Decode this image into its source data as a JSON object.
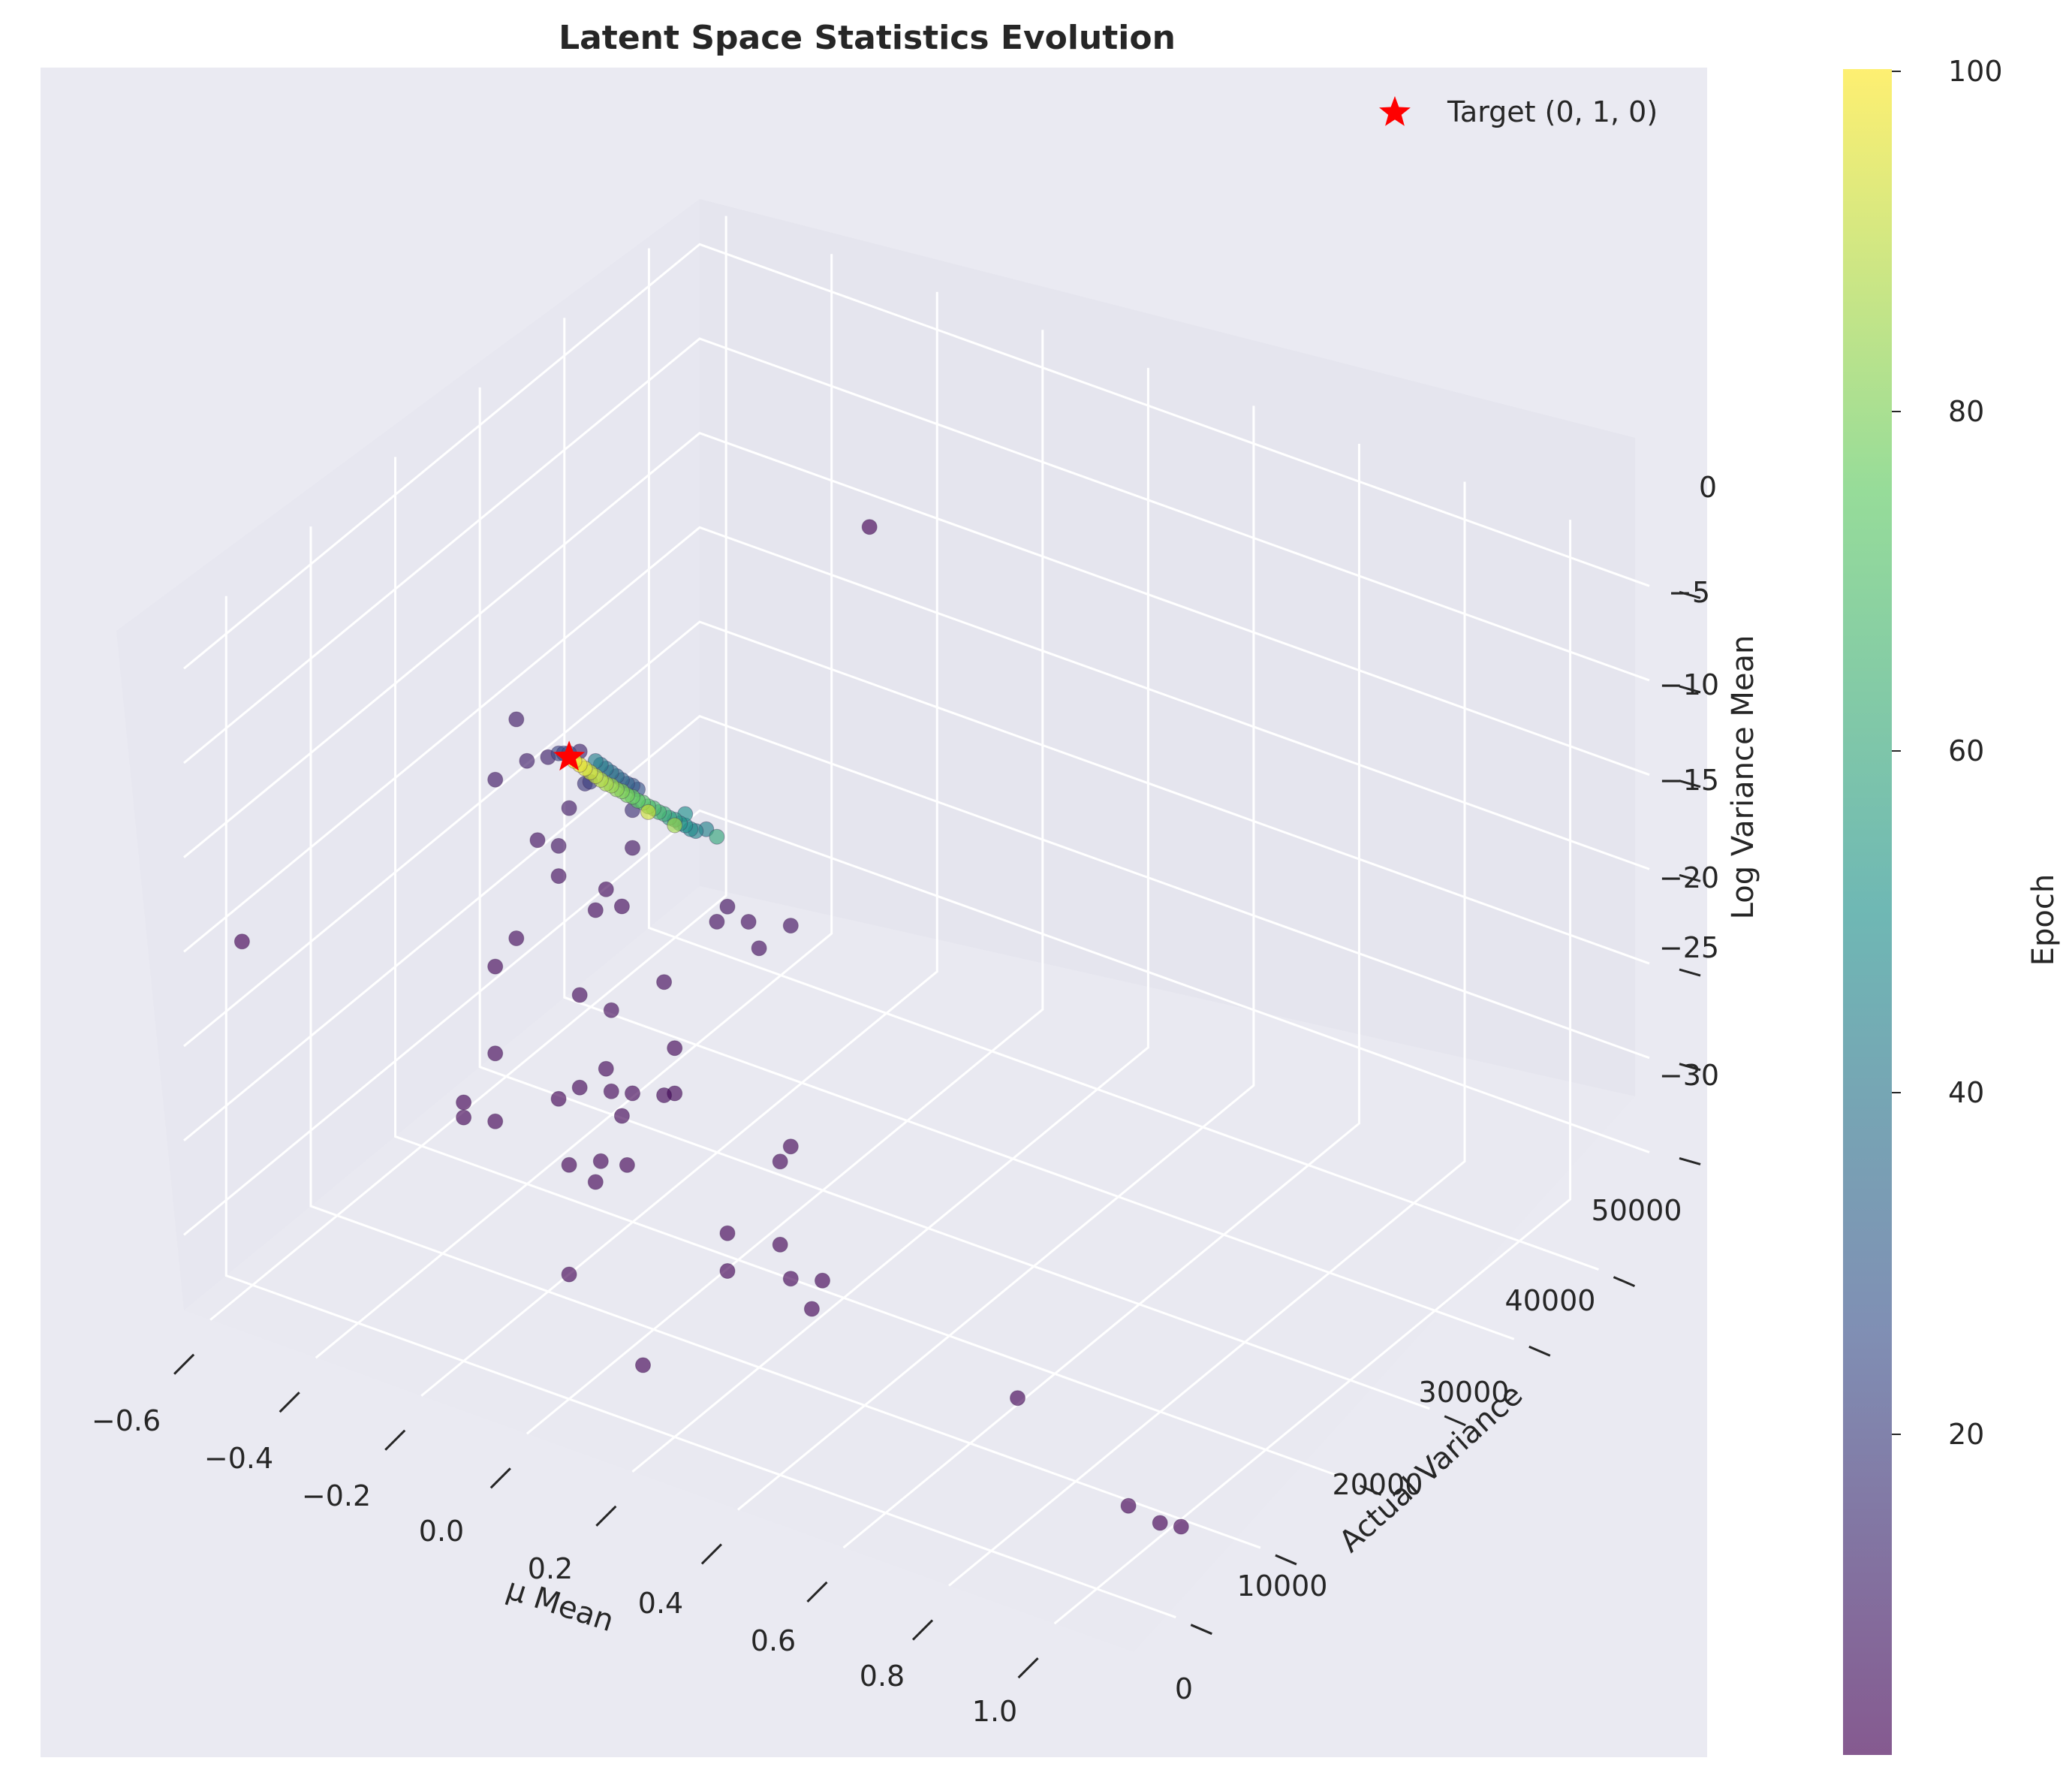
{
  "chart_data": {
    "type": "scatter",
    "projection": "3d",
    "title": "Latent Space Statistics Evolution",
    "xlabel": "μ Mean",
    "ylabel": "Actual Variance",
    "zlabel": "Log Variance Mean",
    "xticks": [
      "−0.6",
      "−0.4",
      "−0.2",
      "0.0",
      "0.2",
      "0.4",
      "0.6",
      "0.8",
      "1.0"
    ],
    "yticks": [
      "0",
      "10000",
      "20000",
      "30000",
      "40000",
      "50000"
    ],
    "zticks": [
      "−30",
      "−25",
      "−20",
      "−15",
      "−10",
      "−5",
      "0"
    ],
    "xlim": [
      -0.65,
      1.15
    ],
    "ylim": [
      -5000,
      56000
    ],
    "zlim": [
      -34,
      2
    ],
    "grid": true,
    "legend": {
      "position": "top-right",
      "entries": [
        {
          "label": "Target (0, 1, 0)",
          "marker": "star",
          "color": "#ff0000"
        }
      ]
    },
    "colorbar": {
      "label": "Epoch",
      "colormap": "viridis",
      "range": [
        1,
        100
      ],
      "ticks": [
        "20",
        "40",
        "60",
        "80",
        "100"
      ]
    },
    "target": {
      "x": 0,
      "y": 1,
      "z": 0
    },
    "points": [
      [
        0.01,
        0,
        -0.1,
        98
      ],
      [
        0.02,
        0,
        -0.2,
        96
      ],
      [
        0.03,
        0,
        -0.3,
        94
      ],
      [
        0.04,
        0,
        -0.4,
        92
      ],
      [
        0.05,
        0,
        -0.5,
        90
      ],
      [
        0.06,
        0,
        -0.6,
        88
      ],
      [
        0.07,
        0,
        -0.7,
        86
      ],
      [
        0.08,
        0,
        -0.7,
        84
      ],
      [
        0.09,
        0,
        -0.8,
        82
      ],
      [
        0.1,
        0,
        -0.8,
        80
      ],
      [
        0.11,
        0,
        -0.9,
        78
      ],
      [
        0.12,
        0,
        -0.9,
        76
      ],
      [
        0.13,
        0,
        -1.0,
        74
      ],
      [
        0.14,
        0,
        -1.0,
        72
      ],
      [
        0.15,
        0,
        -1.1,
        70
      ],
      [
        0.16,
        0,
        -1.1,
        68
      ],
      [
        0.17,
        0,
        -1.2,
        66
      ],
      [
        0.18,
        0,
        -1.2,
        62
      ],
      [
        0.19,
        0,
        -1.3,
        58
      ],
      [
        0.2,
        0,
        -1.3,
        55
      ],
      [
        0.21,
        0,
        -1.4,
        52
      ],
      [
        0.22,
        0,
        -1.4,
        50
      ],
      [
        0.23,
        0,
        -1.5,
        48
      ],
      [
        0.24,
        0,
        -1.5,
        46
      ],
      [
        0.05,
        0,
        0.3,
        44
      ],
      [
        0.06,
        0,
        0.2,
        42
      ],
      [
        0.07,
        0,
        0.1,
        40
      ],
      [
        0.08,
        0,
        0.0,
        38
      ],
      [
        0.09,
        0,
        -0.1,
        36
      ],
      [
        0.1,
        0,
        -0.2,
        34
      ],
      [
        0.11,
        0,
        -0.3,
        32
      ],
      [
        0.12,
        0,
        -0.3,
        30
      ],
      [
        0.13,
        0,
        -0.4,
        28
      ],
      [
        0.0,
        0,
        0.2,
        26
      ],
      [
        -0.01,
        0,
        0.1,
        24
      ],
      [
        -0.02,
        0,
        0.0,
        22
      ],
      [
        0.26,
        0,
        -1.2,
        45
      ],
      [
        0.28,
        0,
        -1.4,
        60
      ],
      [
        0.2,
        0,
        -1.6,
        85
      ],
      [
        0.15,
        0,
        -1.4,
        92
      ],
      [
        0.04,
        0,
        -0.9,
        20
      ],
      [
        0.03,
        0,
        -1.1,
        18
      ],
      [
        0.12,
        0,
        -1.6,
        16
      ],
      [
        0.22,
        0,
        -0.8,
        50
      ],
      [
        0.02,
        0,
        0.5,
        12
      ],
      [
        -0.04,
        0,
        -0.4,
        11
      ],
      [
        -0.08,
        0,
        -1.0,
        10
      ],
      [
        -0.1,
        0,
        1.0,
        9
      ],
      [
        -0.14,
        0,
        -2.6,
        8
      ],
      [
        0.0,
        0,
        -2.7,
        8
      ],
      [
        0.12,
        0,
        -3.6,
        7
      ],
      [
        -0.02,
        0,
        -4.9,
        7
      ],
      [
        -0.06,
        0,
        -5.0,
        6
      ],
      [
        0.3,
        0,
        -4.9,
        6
      ],
      [
        0.42,
        0,
        -4.7,
        6
      ],
      [
        0.34,
        0,
        -5.3,
        5
      ],
      [
        0.28,
        0,
        -5.9,
        5
      ],
      [
        0.36,
        0,
        -6.5,
        5
      ],
      [
        -0.02,
        0,
        -6.5,
        5
      ],
      [
        0.07,
        0,
        -6.3,
        4
      ],
      [
        0.1,
        0,
        -6.9,
        4
      ],
      [
        0.05,
        0,
        -7.6,
        4
      ],
      [
        -0.1,
        0,
        -10.6,
        4
      ],
      [
        0.18,
        0,
        -10.1,
        4
      ],
      [
        0.02,
        0,
        -12.4,
        4
      ],
      [
        0.08,
        0,
        -12.6,
        4
      ],
      [
        -0.14,
        0,
        -12.5,
        3
      ],
      [
        0.2,
        0,
        -13.4,
        3
      ],
      [
        0.07,
        0,
        -15.8,
        3
      ],
      [
        0.2,
        0,
        -15.8,
        3
      ],
      [
        0.18,
        0,
        -16.1,
        3
      ],
      [
        -0.14,
        0,
        -17.1,
        3
      ],
      [
        0.02,
        0,
        -17.3,
        3
      ],
      [
        0.12,
        0,
        -16.6,
        3
      ],
      [
        0.08,
        0,
        -16.9,
        3
      ],
      [
        0.4,
        0,
        -17.4,
        3
      ],
      [
        0.42,
        0,
        -16.4,
        3
      ],
      [
        0.1,
        0,
        -18.0,
        3
      ],
      [
        -0.02,
        0,
        -18.3,
        2
      ],
      [
        -0.2,
        0,
        -20.3,
        2
      ],
      [
        -0.14,
        0,
        -20.7,
        2
      ],
      [
        -0.2,
        0,
        -21.1,
        2
      ],
      [
        0.06,
        0,
        -20.8,
        2
      ],
      [
        0.11,
        0,
        -20.5,
        2
      ],
      [
        0.0,
        0,
        -21.6,
        2
      ],
      [
        0.05,
        0,
        -22.0,
        2
      ],
      [
        0.4,
        0,
        -21.8,
        2
      ],
      [
        0.3,
        0,
        -22.2,
        2
      ],
      [
        0.42,
        0,
        -23.4,
        2
      ],
      [
        0.48,
        0,
        -22.9,
        2
      ],
      [
        0.3,
        0,
        -24.2,
        2
      ],
      [
        0.46,
        0,
        -24.6,
        2
      ],
      [
        0.0,
        0,
        -27.4,
        2
      ],
      [
        0.14,
        0,
        -30.8,
        2
      ],
      [
        0.85,
        0,
        -25.4,
        2
      ],
      [
        -0.62,
        0,
        -16.0,
        1
      ],
      [
        1.06,
        0,
        -29.0,
        1
      ],
      [
        1.12,
        0,
        -29.3,
        1
      ],
      [
        1.16,
        0,
        -29.1,
        1
      ],
      [
        -0.2,
        48000,
        -7.5,
        1
      ]
    ]
  }
}
